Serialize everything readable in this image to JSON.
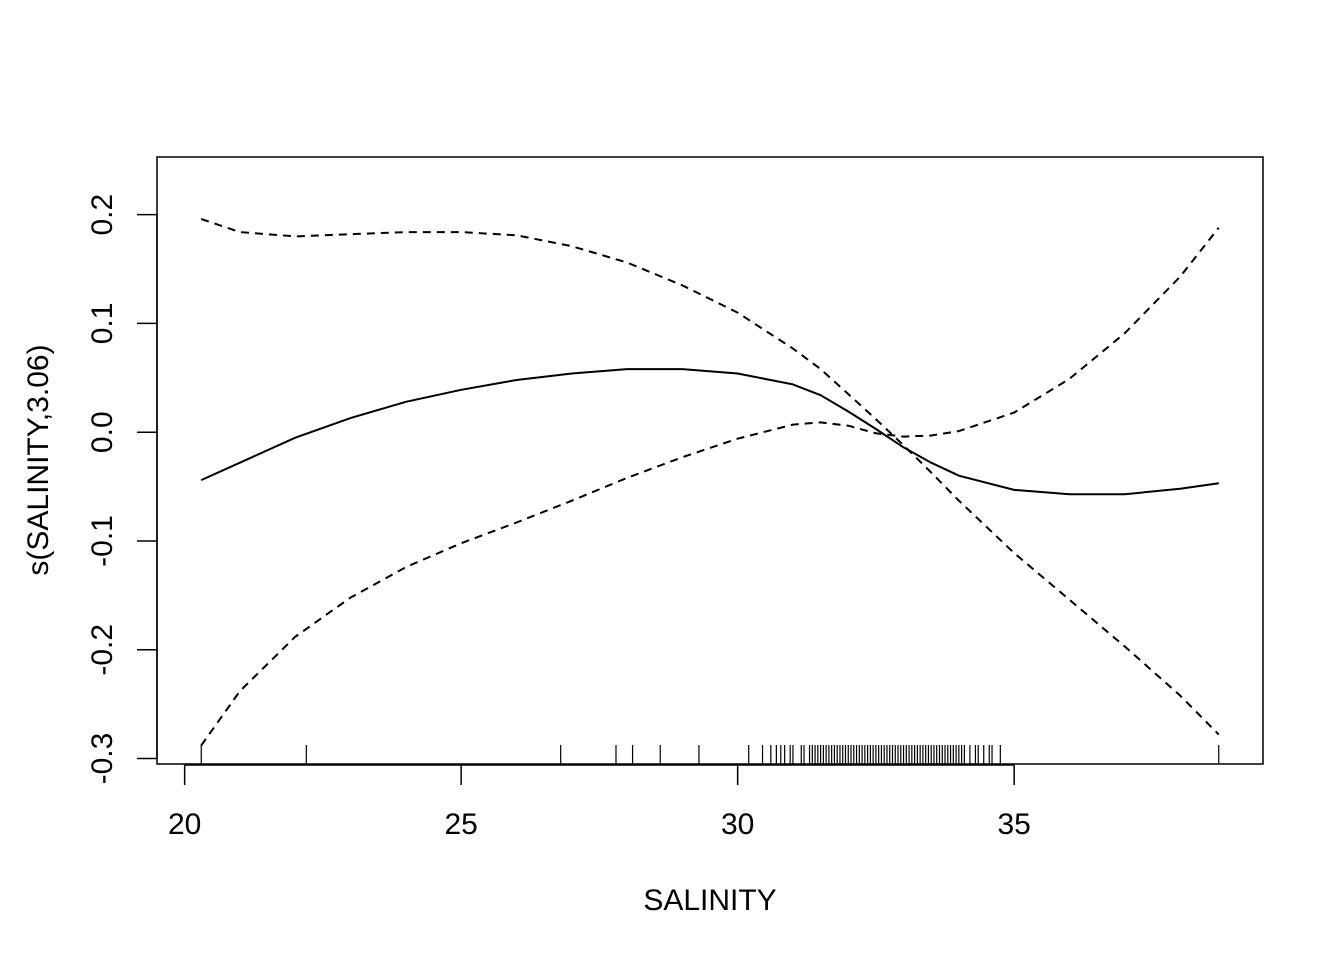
{
  "chart_data": {
    "type": "line",
    "title": "",
    "xlabel": "SALINITY",
    "ylabel": "s(SALINITY,3.06)",
    "xlim": [
      19.5,
      39.5
    ],
    "ylim": [
      -0.305,
      0.253
    ],
    "xticks": [
      "20",
      "25",
      "30",
      "35"
    ],
    "yticks": [
      "-0.3",
      "-0.2",
      "-0.1",
      "0.0",
      "0.1",
      "0.2"
    ],
    "grid": false,
    "legend": "none",
    "series": [
      {
        "style": "solid",
        "x": [
          20.3,
          21,
          22,
          23,
          24,
          25,
          26,
          27,
          28,
          29,
          30,
          31,
          31.5,
          32,
          32.5,
          33,
          33.5,
          34,
          35,
          36,
          37,
          38,
          38.7
        ],
        "y": [
          -0.044,
          -0.028,
          -0.005,
          0.013,
          0.028,
          0.039,
          0.048,
          0.054,
          0.058,
          0.058,
          0.054,
          0.044,
          0.034,
          0.019,
          0.003,
          -0.014,
          -0.028,
          -0.04,
          -0.053,
          -0.057,
          -0.057,
          -0.052,
          -0.047
        ]
      },
      {
        "style": "dashed",
        "x": [
          20.3,
          21,
          22,
          23,
          24,
          25,
          26,
          27,
          28,
          29,
          30,
          31,
          31.5,
          32,
          32.5,
          33,
          33.5,
          34,
          35,
          36,
          37,
          38,
          38.7
        ],
        "y": [
          0.196,
          0.184,
          0.18,
          0.182,
          0.184,
          0.184,
          0.181,
          0.171,
          0.156,
          0.135,
          0.11,
          0.077,
          0.058,
          0.035,
          0.012,
          -0.012,
          -0.037,
          -0.063,
          -0.111,
          -0.154,
          -0.197,
          -0.242,
          -0.278
        ]
      },
      {
        "style": "dashed",
        "x": [
          20.3,
          21,
          22,
          23,
          24,
          25,
          26,
          27,
          28,
          29,
          30,
          31,
          31.5,
          32,
          32.5,
          33,
          33.5,
          34,
          35,
          36,
          37,
          38,
          38.7
        ],
        "y": [
          -0.288,
          -0.238,
          -0.188,
          -0.152,
          -0.124,
          -0.102,
          -0.083,
          -0.063,
          -0.042,
          -0.023,
          -0.006,
          0.007,
          0.009,
          0.006,
          -0.001,
          -0.004,
          -0.003,
          0.001,
          0.018,
          0.049,
          0.091,
          0.143,
          0.188
        ]
      }
    ],
    "rug": [
      20.3,
      22.2,
      26.8,
      27.8,
      28.1,
      28.6,
      29.3,
      30.2,
      30.45,
      30.6,
      30.7,
      30.78,
      30.85,
      30.95,
      31.0,
      31.15,
      31.2,
      31.3,
      31.35,
      31.4,
      31.45,
      31.5,
      31.55,
      31.6,
      31.65,
      31.7,
      31.75,
      31.8,
      31.85,
      31.9,
      31.95,
      32.0,
      32.05,
      32.1,
      32.15,
      32.2,
      32.25,
      32.3,
      32.35,
      32.4,
      32.45,
      32.5,
      32.55,
      32.6,
      32.65,
      32.7,
      32.75,
      32.8,
      32.85,
      32.9,
      32.95,
      33.0,
      33.05,
      33.1,
      33.15,
      33.2,
      33.25,
      33.3,
      33.35,
      33.4,
      33.45,
      33.5,
      33.55,
      33.6,
      33.65,
      33.7,
      33.75,
      33.8,
      33.85,
      33.9,
      33.95,
      34.0,
      34.05,
      34.1,
      34.2,
      34.3,
      34.35,
      34.45,
      34.55,
      34.6,
      34.75,
      38.7
    ]
  }
}
